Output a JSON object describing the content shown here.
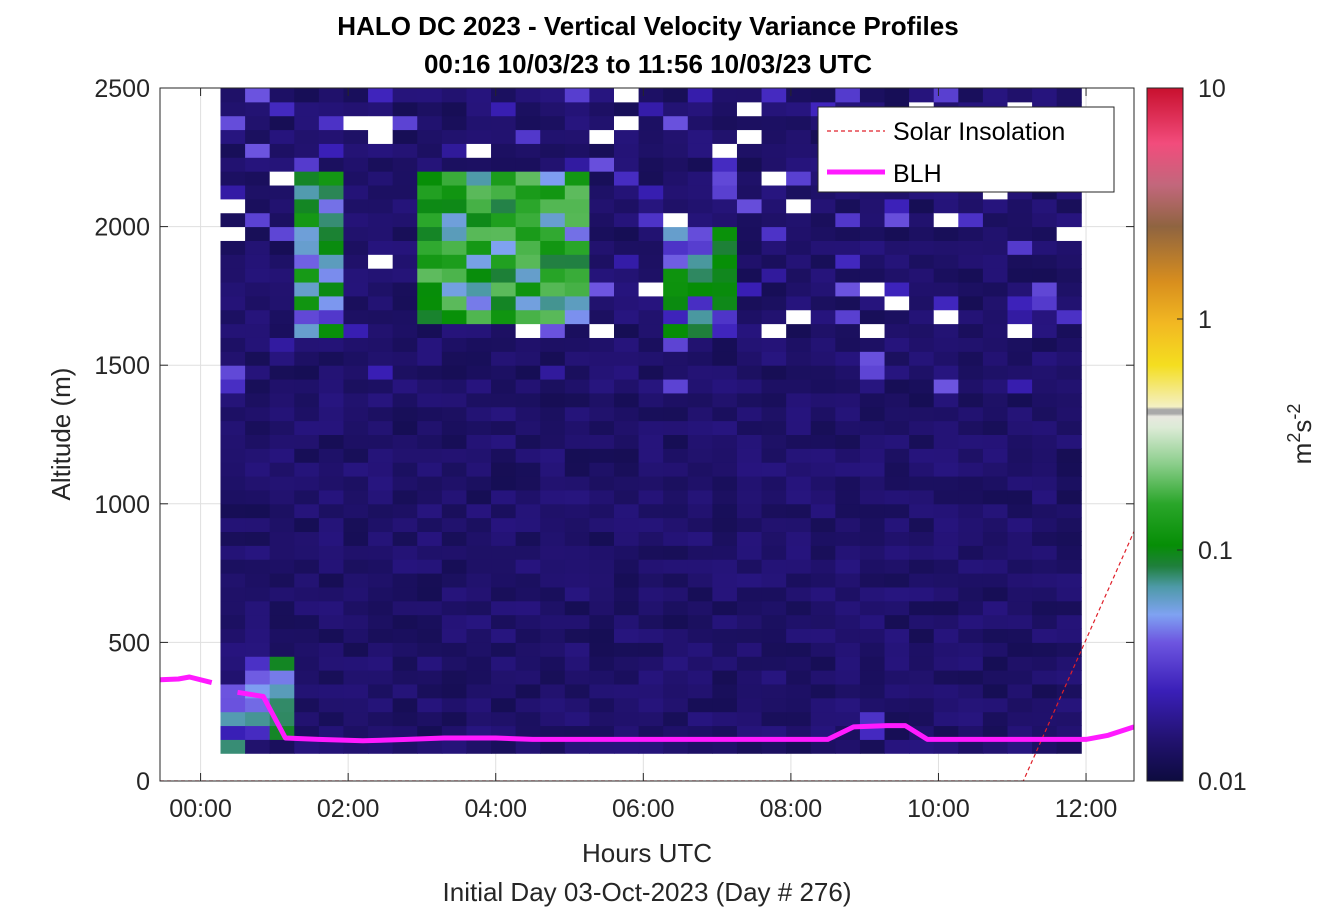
{
  "chart_data": {
    "type": "heatmap",
    "title": "HALO DC 2023 - Vertical Velocity Variance Profiles",
    "subtitle": "00:16 10/03/23 to 11:56 10/03/23  UTC",
    "xlabel": "Hours UTC",
    "xlabel2": "Initial Day 03-Oct-2023 (Day # 276)",
    "ylabel": "Altitude (m)",
    "x_ticks": [
      "00:00",
      "02:00",
      "04:00",
      "06:00",
      "08:00",
      "10:00",
      "12:00"
    ],
    "x_tick_hours": [
      0,
      2,
      4,
      6,
      8,
      10,
      12
    ],
    "xlim_hours": [
      -0.55,
      12.65
    ],
    "y_ticks": [
      "0",
      "500",
      "1000",
      "1500",
      "2000",
      "2500"
    ],
    "y_tick_values": [
      0,
      500,
      1000,
      1500,
      2000,
      2500
    ],
    "ylim": [
      0,
      2500
    ],
    "grid": true,
    "colorbar": {
      "scale": "log",
      "range": [
        0.01,
        10
      ],
      "ticks": [
        "0.01",
        "0.1",
        "1",
        "10"
      ],
      "tick_values": [
        0.01,
        0.1,
        1,
        10
      ],
      "label": "m",
      "label_sup1": "2",
      "label_mid": "s",
      "label_sup2": "-2"
    },
    "heatmap": {
      "x_start_hour": 0.27,
      "x_end_hour": 11.93,
      "y_start_m": 100,
      "y_end_m": 2500,
      "bin_width_hours": 0.3333,
      "bin_height_m": 50,
      "background_value": 0.012,
      "note": "Low variance (~0.01) across most bins; cloud-related patches of higher variance between 1500-2500 m",
      "patches": [
        {
          "x_hours": [
            0.3,
            0.65
          ],
          "y_m": [
            100,
            330
          ],
          "value": 0.05
        },
        {
          "x_hours": [
            1.3,
            1.9
          ],
          "y_m": [
            1600,
            2200
          ],
          "value": 0.08
        },
        {
          "x_hours": [
            3.1,
            5.3
          ],
          "y_m": [
            1650,
            2200
          ],
          "value": 0.12
        },
        {
          "x_hours": [
            6.2,
            7.3
          ],
          "y_m": [
            1600,
            2000
          ],
          "value": 0.07
        },
        {
          "x_hours": [
            8.9,
            9.3
          ],
          "y_m": [
            150,
            250
          ],
          "value": 0.03
        },
        {
          "x_hours": [
            0.6,
            1.3
          ],
          "y_m": [
            130,
            450
          ],
          "value": 0.06
        }
      ]
    },
    "series": [
      {
        "name": "Solar Insolation",
        "style": "dashed",
        "color": "#e0202a",
        "x_hours": [
          -0.55,
          11.15,
          12.65
        ],
        "y": [
          0,
          0,
          900
        ]
      },
      {
        "name": "BLH",
        "style": "solid",
        "color": "#ff1aff",
        "segments": [
          {
            "x_hours": [
              -0.55,
              -0.3,
              -0.15,
              0.15
            ],
            "y": [
              365,
              368,
              375,
              355
            ]
          },
          {
            "x_hours": [
              0.5,
              0.85,
              1.15,
              1.6,
              2.2,
              2.8,
              3.3,
              4.0,
              4.5,
              5.0,
              6.0,
              7.0,
              8.0,
              8.5,
              8.85,
              9.3,
              9.55,
              9.85,
              10.5,
              11.0,
              11.5,
              12.0,
              12.3,
              12.65
            ],
            "y": [
              320,
              305,
              155,
              150,
              145,
              150,
              155,
              155,
              150,
              150,
              150,
              150,
              150,
              150,
              195,
              200,
              200,
              150,
              150,
              150,
              150,
              150,
              165,
              195
            ]
          }
        ]
      }
    ],
    "legend": {
      "position": "top-right",
      "entries": [
        "Solar Insolation",
        "BLH"
      ]
    }
  }
}
